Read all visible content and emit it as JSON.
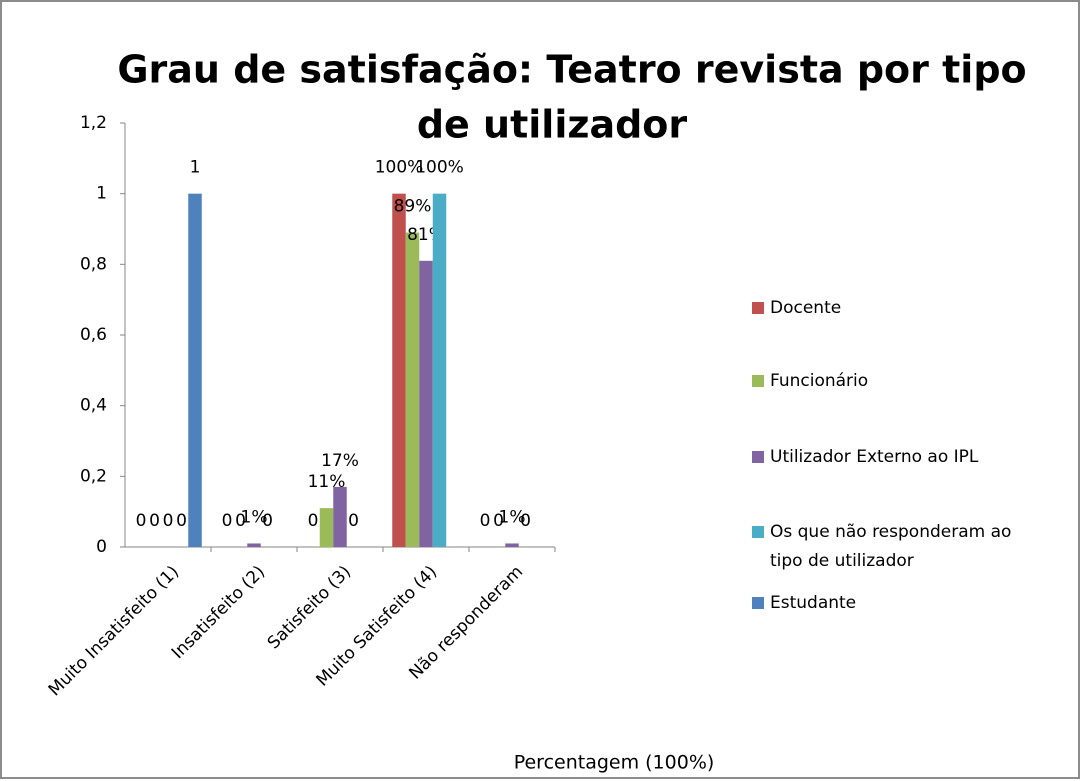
{
  "chart_data": {
    "type": "bar",
    "title": [
      "Grau de satisfação: Teatro revista por tipo",
      "de utilizador"
    ],
    "x_label": "Percentagem (100%)",
    "categories": [
      "Muito Insatisfeito (1)",
      "Insatisfeito (2)",
      "Satisfeito (3)",
      "Muito Satisfeito (4)",
      "Não responderam"
    ],
    "series": [
      {
        "name": "Docente",
        "color": "#c0504d",
        "values": [
          0,
          0,
          0,
          1,
          0
        ],
        "value_labels": [
          "0",
          "0",
          "0",
          "100%",
          "0"
        ]
      },
      {
        "name": "Funcionário",
        "color": "#9bbb59",
        "values": [
          0,
          0,
          0.11,
          0.89,
          0
        ],
        "value_labels": [
          "0",
          "0",
          "11%",
          "89%",
          "0"
        ]
      },
      {
        "name": "Utilizador Externo ao IPL",
        "color": "#8064a2",
        "values": [
          0,
          0.01,
          0.17,
          0.81,
          0.01
        ],
        "value_labels": [
          "0",
          "1%",
          "17%",
          "81%",
          "1%"
        ]
      },
      {
        "name": [
          "Os que não responderam ao",
          "tipo de utilizador"
        ],
        "color": "#4bacc6",
        "values": [
          0,
          0,
          0,
          1,
          0
        ],
        "value_labels": [
          "0",
          "0",
          "0",
          "100%",
          "0"
        ]
      },
      {
        "name": "Estudante",
        "color": "#4f81bd",
        "values": [
          1,
          null,
          null,
          null,
          null
        ],
        "value_labels": [
          "1",
          null,
          null,
          null,
          null
        ]
      }
    ],
    "ylim": [
      0,
      1.2
    ],
    "yticks": [
      0,
      {
        "value": 0.2,
        "label": "0,2"
      },
      {
        "value": 0.4,
        "label": "0,4"
      },
      {
        "value": 0.6,
        "label": "0,6"
      },
      {
        "value": 0.8,
        "label": "0,8"
      },
      1,
      {
        "value": 1.2,
        "label": "1,2"
      }
    ],
    "grid": false,
    "legend": "right"
  }
}
